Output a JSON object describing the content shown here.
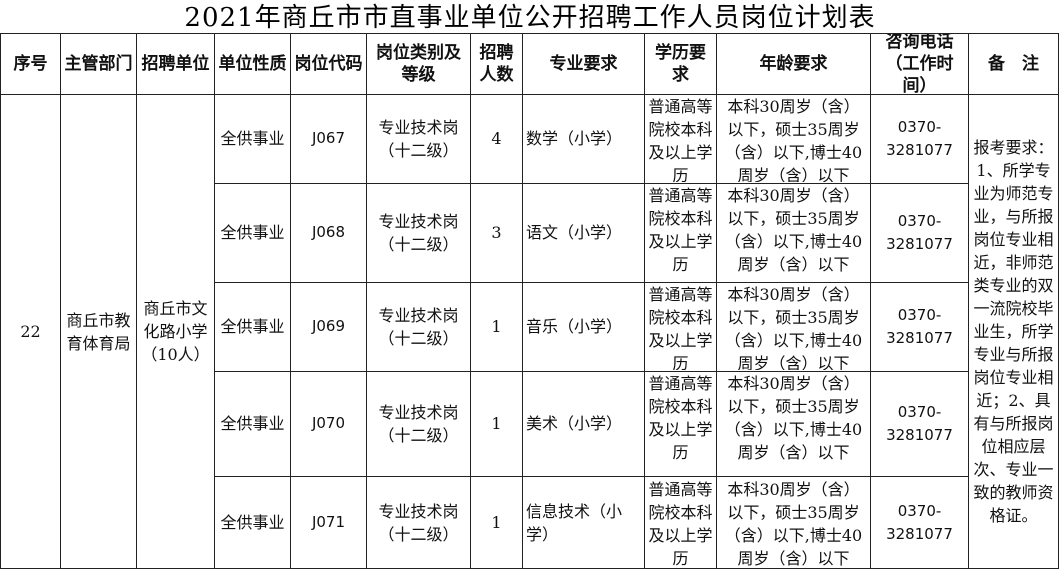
{
  "title": "2021年商丘市市直事业单位公开招聘工作人员岗位计划表",
  "headers": [
    "序号",
    "主管部门",
    "招聘单位",
    "单位性质",
    "岗位代码",
    "岗位类别及等级",
    "招聘人数",
    "专业要求",
    "学历要求",
    "年龄要求",
    "咨询电话（工作时间）",
    "备　注"
  ],
  "group": {
    "seq": "22",
    "department": "商丘市教育体育局",
    "employer": "商丘市文化路小学（10人）",
    "remarks": "报考要求：1、所学专业为师范专业，与所报岗位专业相近，非师范类专业的双一流院校毕业生，所学专业与所报岗位专业相近；2、具有与所报岗位相应层次、专业一致的教师资格证。"
  },
  "rows": [
    {
      "nature": "全供事业",
      "code": "J067",
      "category": "专业技术岗（十二级）",
      "count": "4",
      "major": "数学（小学）",
      "education": "普通高等院校本科及以上学历",
      "age": "本科30周岁（含）以下，硕士35周岁（含）以下,博士40周岁（含）以下",
      "phone": "0370-3281077"
    },
    {
      "nature": "全供事业",
      "code": "J068",
      "category": "专业技术岗（十二级）",
      "count": "3",
      "major": "语文（小学）",
      "education": "普通高等院校本科及以上学历",
      "age": "本科30周岁（含）以下，硕士35周岁（含）以下,博士40周岁（含）以下",
      "phone": "0370-3281077"
    },
    {
      "nature": "全供事业",
      "code": "J069",
      "category": "专业技术岗（十二级）",
      "count": "1",
      "major": "音乐（小学）",
      "education": "普通高等院校本科及以上学历",
      "age": "本科30周岁（含）以下，硕士35周岁（含）以下,博士40周岁（含）以下",
      "phone": "0370-3281077"
    },
    {
      "nature": "全供事业",
      "code": "J070",
      "category": "专业技术岗（十二级）",
      "count": "1",
      "major": "美术（小学）",
      "education": "普通高等院校本科及以上学历",
      "age": "本科30周岁（含）以下，硕士35周岁（含）以下,博士40周岁（含）以下",
      "phone": "0370-3281077"
    },
    {
      "nature": "全供事业",
      "code": "J071",
      "category": "专业技术岗（十二级）",
      "count": "1",
      "major": "信息技术（小学）",
      "education": "普通高等院校本科及以上学历",
      "age": "本科30周岁（含）以下，硕士35周岁（含）以下,博士40周岁（含）以下",
      "phone": "0370-3281077"
    }
  ]
}
